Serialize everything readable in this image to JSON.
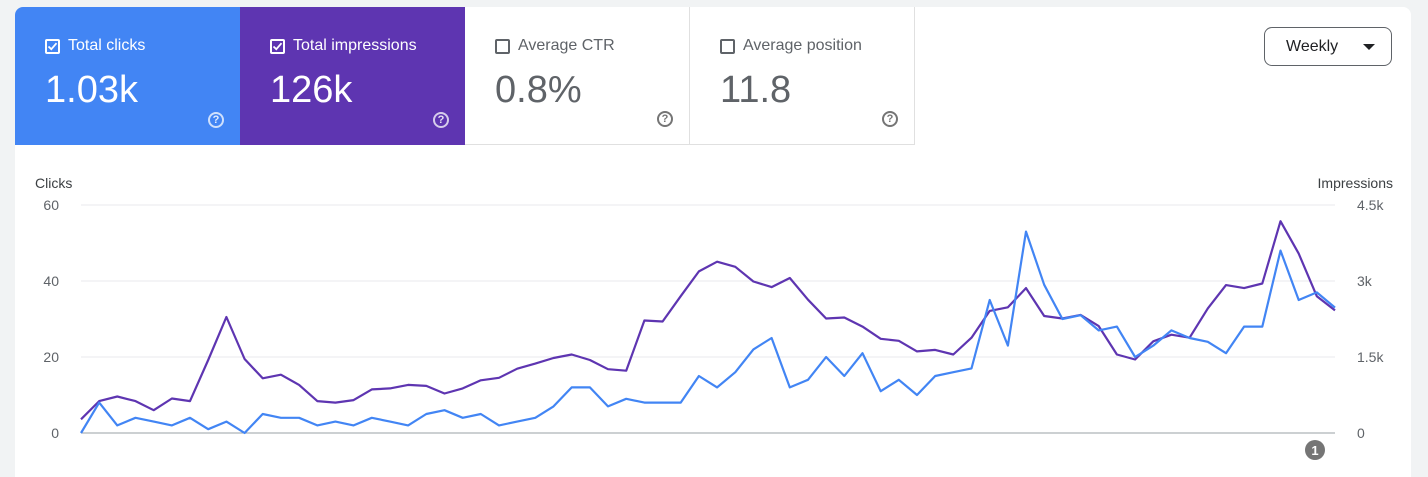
{
  "metrics": [
    {
      "label": "Total clicks",
      "value": "1.03k",
      "checked": true,
      "color": "#4285f4"
    },
    {
      "label": "Total impressions",
      "value": "126k",
      "checked": true,
      "color": "#5e35b1"
    },
    {
      "label": "Average CTR",
      "value": "0.8%",
      "checked": false
    },
    {
      "label": "Average position",
      "value": "11.8",
      "checked": false
    }
  ],
  "period_select": {
    "value": "Weekly"
  },
  "annotation_badge": "1",
  "help_icon": "help-circle-icon",
  "chart_data": {
    "type": "line",
    "left_axis_title": "Clicks",
    "right_axis_title": "Impressions",
    "left_ticks": [
      "0",
      "20",
      "40",
      "60"
    ],
    "right_ticks": [
      "0",
      "1.5k",
      "3k",
      "4.5k"
    ],
    "ylim_left": [
      0,
      60
    ],
    "ylim_right": [
      0,
      4500
    ],
    "grid": true,
    "series": [
      {
        "name": "Total clicks",
        "axis": "left",
        "color": "#4285f4",
        "values": [
          0,
          8,
          2,
          4,
          3,
          2,
          4,
          1,
          3,
          0,
          5,
          4,
          4,
          2,
          3,
          2,
          4,
          3,
          2,
          5,
          6,
          4,
          5,
          2,
          3,
          4,
          7,
          12,
          12,
          7,
          9,
          8,
          8,
          8,
          15,
          12,
          16,
          22,
          25,
          12,
          14,
          20,
          15,
          21,
          11,
          14,
          10,
          15,
          16,
          17,
          35,
          23,
          53,
          39,
          30,
          31,
          27,
          28,
          20,
          23,
          27,
          25,
          24,
          21,
          28,
          28,
          48,
          35,
          37,
          33
        ]
      },
      {
        "name": "Total impressions",
        "axis": "right",
        "color": "#5e35b1",
        "values": [
          270,
          630,
          720,
          630,
          450,
          680,
          630,
          1440,
          2290,
          1460,
          1080,
          1150,
          950,
          630,
          600,
          650,
          860,
          880,
          950,
          930,
          780,
          880,
          1040,
          1090,
          1270,
          1370,
          1480,
          1550,
          1440,
          1260,
          1230,
          2220,
          2200,
          2700,
          3190,
          3380,
          3280,
          2990,
          2880,
          3060,
          2630,
          2260,
          2280,
          2100,
          1860,
          1820,
          1610,
          1640,
          1550,
          1880,
          2410,
          2480,
          2860,
          2310,
          2260,
          2330,
          2110,
          1550,
          1450,
          1810,
          1940,
          1880,
          2460,
          2920,
          2860,
          2950,
          4180,
          3540,
          2700,
          2420
        ]
      }
    ]
  }
}
